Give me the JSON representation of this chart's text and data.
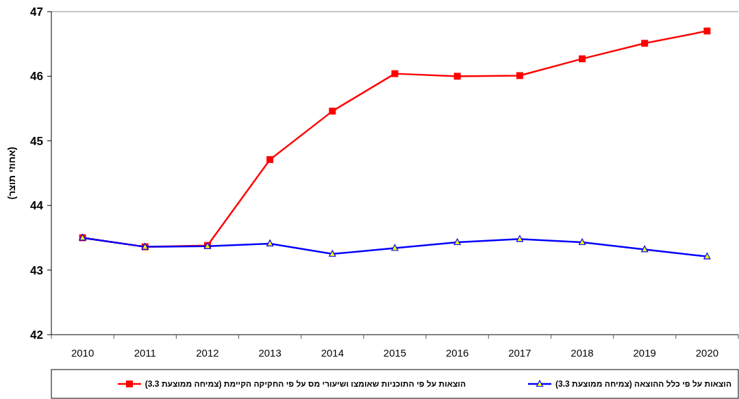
{
  "chart_data": {
    "type": "line",
    "ylabel": "(אחוזי תוצר)",
    "categories": [
      "2010",
      "2011",
      "2012",
      "2013",
      "2014",
      "2015",
      "2016",
      "2017",
      "2018",
      "2019",
      "2020"
    ],
    "ylim": [
      42,
      47
    ],
    "yticks": [
      42,
      43,
      44,
      45,
      46,
      47
    ],
    "grid": false,
    "legend": "bottom",
    "line_style": "solid",
    "series": [
      {
        "name": "הוצאות על פי התוכניות שאומצו ושיעורי מס על פי החקיקה הקיימת (צמיחה ממוצעת 3.3)",
        "color": "#ff0000",
        "marker": "square",
        "values": [
          43.5,
          43.36,
          43.38,
          44.71,
          45.46,
          46.04,
          46.0,
          46.01,
          46.27,
          46.51,
          46.7
        ]
      },
      {
        "name": "הוצאות על פי כלל ההוצאה (צמיחה ממוצעת 3.3)",
        "color": "#0000ff",
        "marker": "triangle",
        "values": [
          43.5,
          43.36,
          43.37,
          43.41,
          43.25,
          43.34,
          43.43,
          43.48,
          43.43,
          43.32,
          43.21
        ]
      }
    ]
  }
}
